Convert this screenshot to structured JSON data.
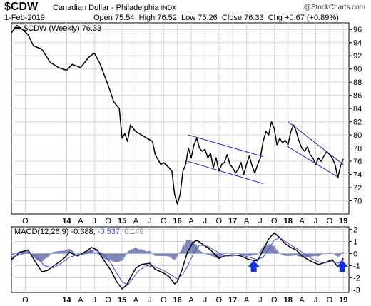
{
  "header": {
    "symbol": "$CDW",
    "description": "Canadian Dollar - Philadelphia",
    "exchange": "INDX",
    "date": "1-Feb-2019",
    "open_label": "Open",
    "open": "75.54",
    "high_label": "High",
    "high": "76.52",
    "low_label": "Low",
    "low": "75.26",
    "close_label": "Close",
    "close": "76.33",
    "chg_label": "Chg",
    "chg": "+0.67 (+0.89%)",
    "copyright": "@StockCharts.com"
  },
  "colors": {
    "price": "#000000",
    "trendline": "#1f24c8",
    "macd_signal": "#4650c8",
    "histogram": "#7a84b6",
    "arrow": "#1530e0",
    "grid": "#d6d6d6"
  },
  "chart_data": [
    {
      "type": "line",
      "legend": "$CDW (Weekly) 76.33",
      "ylim": [
        68,
        97
      ],
      "yticks": [
        70,
        72,
        74,
        76,
        78,
        80,
        82,
        84,
        86,
        88,
        90,
        92,
        94,
        96
      ],
      "x_tick_labels": [
        "O",
        "14",
        "A",
        "J",
        "O",
        "15",
        "A",
        "J",
        "O",
        "16",
        "A",
        "J",
        "O",
        "17",
        "A",
        "J",
        "O",
        "18",
        "A",
        "J",
        "O",
        "19"
      ],
      "x_tick_pos": [
        0.25,
        1.0,
        1.25,
        1.5,
        1.75,
        2.0,
        2.25,
        2.5,
        2.75,
        3.0,
        3.25,
        3.5,
        3.75,
        4.0,
        4.25,
        4.5,
        4.75,
        5.0,
        5.25,
        5.5,
        5.75,
        6.0
      ],
      "xlim": [
        0,
        6.1
      ],
      "series": [
        {
          "points": [
            [
              0.0,
              95.5
            ],
            [
              0.1,
              96.6
            ],
            [
              0.2,
              96.0
            ],
            [
              0.3,
              95.2
            ],
            [
              0.4,
              93.5
            ],
            [
              0.55,
              93.0
            ],
            [
              0.7,
              91.0
            ],
            [
              0.85,
              90.2
            ],
            [
              1.0,
              89.8
            ],
            [
              1.1,
              90.7
            ],
            [
              1.25,
              90.2
            ],
            [
              1.4,
              91.8
            ],
            [
              1.5,
              92.4
            ],
            [
              1.6,
              90.8
            ],
            [
              1.75,
              87.5
            ],
            [
              1.85,
              85.0
            ],
            [
              1.95,
              84.0
            ],
            [
              2.0,
              79.5
            ],
            [
              2.05,
              80.2
            ],
            [
              2.1,
              79.0
            ],
            [
              2.15,
              81.5
            ],
            [
              2.25,
              80.5
            ],
            [
              2.35,
              80.0
            ],
            [
              2.45,
              79.5
            ],
            [
              2.55,
              79.0
            ],
            [
              2.6,
              77.0
            ],
            [
              2.7,
              75.5
            ],
            [
              2.75,
              75.8
            ],
            [
              2.85,
              75.0
            ],
            [
              2.9,
              74.5
            ],
            [
              2.95,
              71.0
            ],
            [
              3.0,
              69.5
            ],
            [
              3.05,
              71.0
            ],
            [
              3.1,
              74.5
            ],
            [
              3.15,
              75.5
            ],
            [
              3.2,
              78.0
            ],
            [
              3.25,
              76.5
            ],
            [
              3.3,
              78.5
            ],
            [
              3.35,
              79.5
            ],
            [
              3.4,
              78.0
            ],
            [
              3.45,
              77.5
            ],
            [
              3.5,
              77.8
            ],
            [
              3.55,
              76.5
            ],
            [
              3.6,
              77.2
            ],
            [
              3.65,
              75.0
            ],
            [
              3.7,
              76.5
            ],
            [
              3.75,
              74.5
            ],
            [
              3.8,
              75.5
            ],
            [
              3.85,
              75.8
            ],
            [
              3.9,
              77.0
            ],
            [
              3.95,
              75.5
            ],
            [
              4.0,
              75.0
            ],
            [
              4.05,
              74.2
            ],
            [
              4.1,
              74.8
            ],
            [
              4.15,
              75.8
            ],
            [
              4.2,
              74.0
            ],
            [
              4.25,
              75.5
            ],
            [
              4.3,
              76.8
            ],
            [
              4.35,
              75.3
            ],
            [
              4.4,
              74.2
            ],
            [
              4.45,
              75.5
            ],
            [
              4.5,
              76.5
            ],
            [
              4.55,
              79.0
            ],
            [
              4.6,
              80.5
            ],
            [
              4.65,
              80.0
            ],
            [
              4.7,
              82.0
            ],
            [
              4.75,
              81.0
            ],
            [
              4.8,
              78.5
            ],
            [
              4.85,
              79.5
            ],
            [
              4.9,
              78.8
            ],
            [
              4.95,
              79.2
            ],
            [
              5.0,
              78.5
            ],
            [
              5.05,
              80.5
            ],
            [
              5.1,
              81.5
            ],
            [
              5.15,
              80.5
            ],
            [
              5.2,
              79.0
            ],
            [
              5.25,
              78.0
            ],
            [
              5.3,
              77.5
            ],
            [
              5.35,
              78.2
            ],
            [
              5.4,
              77.0
            ],
            [
              5.45,
              76.5
            ],
            [
              5.5,
              75.5
            ],
            [
              5.55,
              76.5
            ],
            [
              5.6,
              76.0
            ],
            [
              5.65,
              76.8
            ],
            [
              5.7,
              77.5
            ],
            [
              5.75,
              77.0
            ],
            [
              5.8,
              76.5
            ],
            [
              5.85,
              75.5
            ],
            [
              5.9,
              73.5
            ],
            [
              5.95,
              75.3
            ],
            [
              6.0,
              76.33
            ]
          ]
        }
      ],
      "trendlines": [
        [
          [
            3.18,
            76.0
          ],
          [
            4.55,
            72.6
          ]
        ],
        [
          [
            3.2,
            80.0
          ],
          [
            4.55,
            76.7
          ]
        ],
        [
          [
            4.98,
            78.3
          ],
          [
            5.92,
            73.5
          ]
        ],
        [
          [
            5.0,
            82.0
          ],
          [
            6.0,
            75.5
          ]
        ]
      ]
    },
    {
      "type": "line",
      "legend": {
        "name": "MACD(12,26,9)",
        "macd": "-0.388",
        "signal": "-0.537",
        "histogram": "0.149"
      },
      "ylim": [
        -3.2,
        2.2
      ],
      "yticks": [
        -3,
        -2,
        -1,
        0,
        1,
        2
      ],
      "x_tick_labels": [
        "O",
        "14",
        "A",
        "J",
        "O",
        "15",
        "A",
        "J",
        "O",
        "16",
        "A",
        "J",
        "O",
        "17",
        "A",
        "J",
        "O",
        "18",
        "A",
        "J",
        "O",
        "19"
      ],
      "xlim": [
        0,
        6.1
      ],
      "series": [
        {
          "name": "MACD",
          "points": [
            [
              0.0,
              -0.5
            ],
            [
              0.15,
              0.1
            ],
            [
              0.3,
              0.3
            ],
            [
              0.45,
              -0.8
            ],
            [
              0.55,
              -1.5
            ],
            [
              0.65,
              -1.4
            ],
            [
              0.8,
              -0.9
            ],
            [
              0.95,
              -0.4
            ],
            [
              1.05,
              0.1
            ],
            [
              1.2,
              -0.2
            ],
            [
              1.35,
              0.2
            ],
            [
              1.45,
              0.5
            ],
            [
              1.55,
              0.3
            ],
            [
              1.65,
              -0.4
            ],
            [
              1.8,
              -1.4
            ],
            [
              1.9,
              -2.3
            ],
            [
              2.0,
              -2.9
            ],
            [
              2.08,
              -2.6
            ],
            [
              2.15,
              -2.0
            ],
            [
              2.25,
              -1.2
            ],
            [
              2.35,
              -0.9
            ],
            [
              2.5,
              -0.8
            ],
            [
              2.6,
              -1.3
            ],
            [
              2.75,
              -1.6
            ],
            [
              2.85,
              -1.9
            ],
            [
              2.95,
              -2.5
            ],
            [
              3.0,
              -2.3
            ],
            [
              3.08,
              -1.4
            ],
            [
              3.18,
              0.1
            ],
            [
              3.28,
              0.9
            ],
            [
              3.35,
              1.1
            ],
            [
              3.45,
              0.8
            ],
            [
              3.6,
              0.3
            ],
            [
              3.75,
              -0.4
            ],
            [
              3.85,
              -0.2
            ],
            [
              4.0,
              -0.1
            ],
            [
              4.15,
              -0.2
            ],
            [
              4.3,
              -0.5
            ],
            [
              4.45,
              -0.6
            ],
            [
              4.55,
              0.3
            ],
            [
              4.65,
              1.2
            ],
            [
              4.75,
              1.7
            ],
            [
              4.85,
              1.3
            ],
            [
              4.95,
              0.8
            ],
            [
              5.05,
              0.5
            ],
            [
              5.15,
              0.3
            ],
            [
              5.25,
              -0.2
            ],
            [
              5.4,
              -0.6
            ],
            [
              5.55,
              -0.9
            ],
            [
              5.7,
              -0.7
            ],
            [
              5.8,
              -0.5
            ],
            [
              5.9,
              -1.1
            ],
            [
              5.95,
              -0.8
            ],
            [
              6.0,
              -0.39
            ]
          ]
        },
        {
          "name": "Signal",
          "points": [
            [
              0.0,
              -0.3
            ],
            [
              0.15,
              -0.1
            ],
            [
              0.3,
              0.1
            ],
            [
              0.45,
              -0.3
            ],
            [
              0.6,
              -1.0
            ],
            [
              0.75,
              -1.2
            ],
            [
              0.9,
              -0.8
            ],
            [
              1.05,
              -0.3
            ],
            [
              1.2,
              -0.1
            ],
            [
              1.35,
              0.0
            ],
            [
              1.5,
              0.3
            ],
            [
              1.65,
              0.0
            ],
            [
              1.8,
              -0.8
            ],
            [
              1.9,
              -1.6
            ],
            [
              2.0,
              -2.3
            ],
            [
              2.1,
              -2.6
            ],
            [
              2.2,
              -2.0
            ],
            [
              2.3,
              -1.4
            ],
            [
              2.45,
              -1.0
            ],
            [
              2.6,
              -1.1
            ],
            [
              2.75,
              -1.4
            ],
            [
              2.9,
              -1.8
            ],
            [
              3.0,
              -2.1
            ],
            [
              3.1,
              -1.7
            ],
            [
              3.2,
              -0.9
            ],
            [
              3.3,
              0.1
            ],
            [
              3.4,
              0.7
            ],
            [
              3.55,
              0.6
            ],
            [
              3.7,
              0.2
            ],
            [
              3.85,
              -0.2
            ],
            [
              4.0,
              -0.2
            ],
            [
              4.15,
              -0.1
            ],
            [
              4.3,
              -0.3
            ],
            [
              4.45,
              -0.5
            ],
            [
              4.55,
              -0.3
            ],
            [
              4.65,
              0.4
            ],
            [
              4.75,
              1.1
            ],
            [
              4.85,
              1.3
            ],
            [
              4.95,
              1.0
            ],
            [
              5.05,
              0.7
            ],
            [
              5.2,
              0.3
            ],
            [
              5.35,
              -0.2
            ],
            [
              5.5,
              -0.6
            ],
            [
              5.65,
              -0.8
            ],
            [
              5.8,
              -0.6
            ],
            [
              5.9,
              -0.8
            ],
            [
              6.0,
              -0.54
            ]
          ]
        }
      ],
      "arrows_at": [
        4.38,
        5.98
      ]
    }
  ]
}
